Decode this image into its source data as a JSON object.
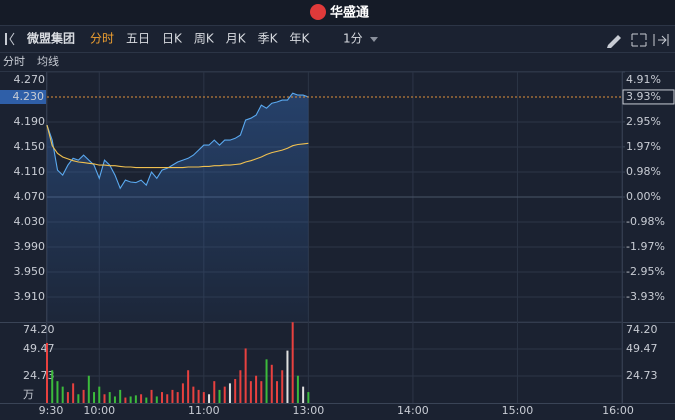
{
  "header": {
    "title": "华盛通"
  },
  "toolbar": {
    "stock": "微盟集团",
    "tabs": [
      "分时",
      "五日",
      "日K",
      "周K",
      "月K",
      "季K",
      "年K"
    ],
    "interval": "1分"
  },
  "chart_data": [
    {
      "type": "line",
      "x": [
        0,
        3,
        6,
        9,
        12,
        15,
        18,
        21,
        24,
        27,
        30,
        33,
        36,
        39,
        42,
        45,
        48,
        51,
        54,
        57,
        60,
        63,
        66,
        69,
        72,
        75,
        78,
        81,
        84,
        87,
        90,
        93,
        96,
        99,
        102,
        105,
        108,
        111,
        114,
        117,
        120,
        123,
        126,
        129,
        132,
        135,
        138,
        141,
        144,
        147,
        150
      ],
      "xlim": [
        0,
        330
      ],
      "xticks": [
        {
          "value": 0,
          "label": "9:30"
        },
        {
          "value": 30,
          "label": "10:00"
        },
        {
          "value": 90,
          "label": "11:00"
        },
        {
          "value": 150,
          "label": "13:00"
        },
        {
          "value": 210,
          "label": "14:00"
        },
        {
          "value": 270,
          "label": "15:00"
        },
        {
          "value": 330,
          "label": "16:00"
        }
      ],
      "ylim": [
        3.87,
        4.27
      ],
      "yticks": [
        {
          "value": 4.27,
          "label": "4.270"
        },
        {
          "value": 4.19,
          "label": "4.190"
        },
        {
          "value": 4.15,
          "label": "4.150"
        },
        {
          "value": 4.11,
          "label": "4.110"
        },
        {
          "value": 4.07,
          "label": "4.070"
        },
        {
          "value": 4.03,
          "label": "4.030"
        },
        {
          "value": 3.99,
          "label": "3.990"
        },
        {
          "value": 3.95,
          "label": "3.950"
        },
        {
          "value": 3.91,
          "label": "3.910"
        }
      ],
      "y2lim": [
        -4.91,
        4.91
      ],
      "y2ticks": [
        {
          "value": 4.91,
          "label": "4.91%"
        },
        {
          "value": 2.95,
          "label": "2.95%"
        },
        {
          "value": 1.97,
          "label": "1.97%"
        },
        {
          "value": 0.98,
          "label": "0.98%"
        },
        {
          "value": 0,
          "label": "0.00%"
        },
        {
          "value": -0.98,
          "label": "-0.98%"
        },
        {
          "value": -1.97,
          "label": "-1.97%"
        },
        {
          "value": -2.95,
          "label": "-2.95%"
        },
        {
          "value": -3.93,
          "label": "-3.93%"
        }
      ],
      "reference": 4.07,
      "last_price": {
        "value": 4.23,
        "label": "4.230"
      },
      "last_change": {
        "value": 3.93,
        "label": "3.93%"
      },
      "grid": true,
      "series": [
        {
          "name": "分时",
          "color": "#5aa9f0",
          "values": [
            4.185,
            4.161,
            4.113,
            4.105,
            4.121,
            4.132,
            4.129,
            4.137,
            4.129,
            4.121,
            4.1,
            4.129,
            4.121,
            4.105,
            4.084,
            4.097,
            4.094,
            4.093,
            4.097,
            4.089,
            4.11,
            4.1,
            4.113,
            4.116,
            4.121,
            4.126,
            4.129,
            4.132,
            4.137,
            4.145,
            4.153,
            4.153,
            4.161,
            4.153,
            4.161,
            4.161,
            4.164,
            4.169,
            4.193,
            4.196,
            4.201,
            4.217,
            4.212,
            4.22,
            4.222,
            4.225,
            4.225,
            4.236,
            4.233,
            4.233,
            4.23
          ]
        },
        {
          "name": "均线",
          "color": "#f0c050",
          "values": [
            4.185,
            4.152,
            4.14,
            4.134,
            4.131,
            4.128,
            4.126,
            4.125,
            4.124,
            4.123,
            4.121,
            4.121,
            4.12,
            4.12,
            4.119,
            4.118,
            4.118,
            4.117,
            4.117,
            4.117,
            4.117,
            4.117,
            4.117,
            4.117,
            4.117,
            4.117,
            4.117,
            4.118,
            4.118,
            4.118,
            4.119,
            4.119,
            4.12,
            4.12,
            4.121,
            4.121,
            4.122,
            4.123,
            4.126,
            4.128,
            4.131,
            4.134,
            4.138,
            4.141,
            4.143,
            4.145,
            4.148,
            4.152,
            4.154,
            4.155,
            4.156
          ]
        }
      ]
    },
    {
      "type": "bar",
      "x": [
        0,
        3,
        6,
        9,
        12,
        15,
        18,
        21,
        24,
        27,
        30,
        33,
        36,
        39,
        42,
        45,
        48,
        51,
        54,
        57,
        60,
        63,
        66,
        69,
        72,
        75,
        78,
        81,
        84,
        87,
        90,
        93,
        96,
        99,
        102,
        105,
        108,
        111,
        114,
        117,
        120,
        123,
        126,
        129,
        132,
        135,
        138,
        141,
        144,
        147,
        150
      ],
      "values": [
        55,
        30,
        20,
        15,
        10,
        18,
        8,
        12,
        25,
        10,
        15,
        8,
        10,
        6,
        12,
        5,
        6,
        7,
        8,
        5,
        12,
        6,
        10,
        8,
        12,
        10,
        18,
        30,
        15,
        12,
        10,
        8,
        20,
        12,
        15,
        18,
        22,
        30,
        50,
        20,
        25,
        20,
        40,
        35,
        20,
        30,
        48,
        74,
        25,
        15,
        10
      ],
      "ylim": [
        0,
        74.2
      ],
      "yticks": [
        {
          "value": 74.2,
          "label": "74.20"
        },
        49.47,
        24.73
      ],
      "unit": "万"
    }
  ]
}
